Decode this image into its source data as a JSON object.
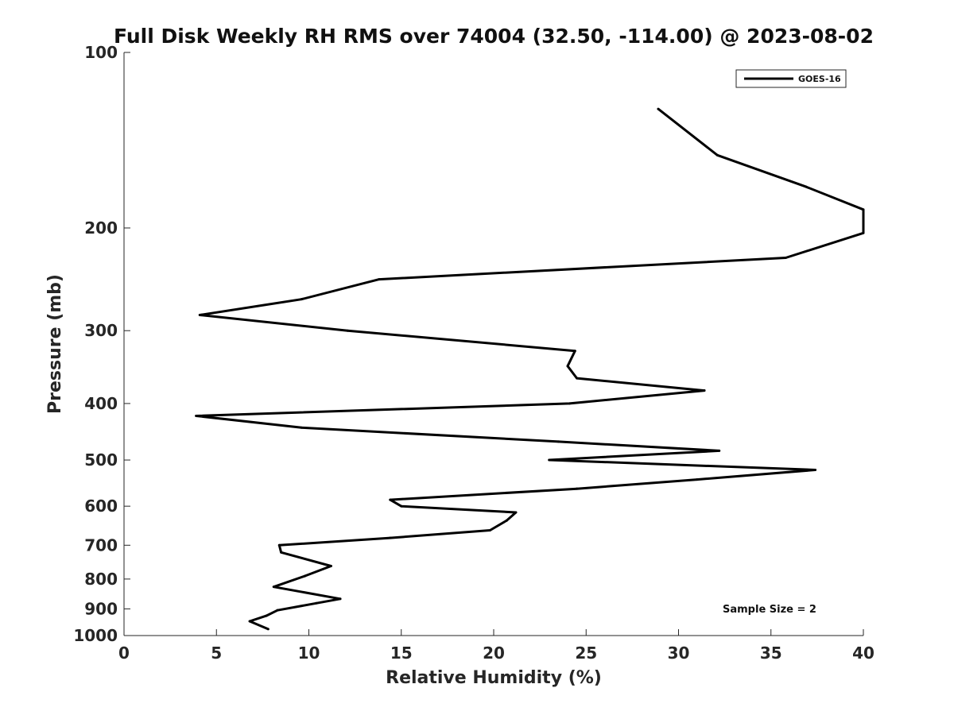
{
  "chart_data": {
    "type": "line",
    "title": "Full Disk Weekly RH RMS over 74004 (32.50, -114.00) @ 2023-08-02",
    "xlabel": "Relative Humidity (%)",
    "ylabel": "Pressure (mb)",
    "xlim": [
      0,
      40
    ],
    "ylim": [
      100,
      1000
    ],
    "y_scale": "log",
    "y_reversed": true,
    "grid": false,
    "x_ticks": [
      "0",
      "5",
      "10",
      "15",
      "20",
      "25",
      "30",
      "35",
      "40"
    ],
    "y_ticks": [
      "100",
      "200",
      "300",
      "400",
      "500",
      "600",
      "700",
      "800",
      "900",
      "1000"
    ],
    "legend_position": "top-right",
    "annotation": "Sample Size = 2",
    "series": [
      {
        "name": "GOES-16",
        "color": "#000000",
        "points": [
          {
            "x": 28.9,
            "p": 125
          },
          {
            "x": 32.1,
            "p": 150
          },
          {
            "x": 36.9,
            "p": 170
          },
          {
            "x": 40.0,
            "p": 186
          },
          {
            "x": 40.0,
            "p": 204
          },
          {
            "x": 35.8,
            "p": 225
          },
          {
            "x": 13.8,
            "p": 245
          },
          {
            "x": 9.6,
            "p": 265
          },
          {
            "x": 4.1,
            "p": 282
          },
          {
            "x": 12.1,
            "p": 300
          },
          {
            "x": 24.4,
            "p": 325
          },
          {
            "x": 24.0,
            "p": 345
          },
          {
            "x": 24.5,
            "p": 362
          },
          {
            "x": 31.4,
            "p": 380
          },
          {
            "x": 24.1,
            "p": 400
          },
          {
            "x": 3.9,
            "p": 420
          },
          {
            "x": 9.6,
            "p": 440
          },
          {
            "x": 23.5,
            "p": 465
          },
          {
            "x": 32.2,
            "p": 482
          },
          {
            "x": 23.0,
            "p": 500
          },
          {
            "x": 37.4,
            "p": 520
          },
          {
            "x": 31.0,
            "p": 540
          },
          {
            "x": 24.5,
            "p": 560
          },
          {
            "x": 14.4,
            "p": 585
          },
          {
            "x": 15.0,
            "p": 600
          },
          {
            "x": 21.2,
            "p": 615
          },
          {
            "x": 20.7,
            "p": 635
          },
          {
            "x": 19.8,
            "p": 660
          },
          {
            "x": 14.4,
            "p": 680
          },
          {
            "x": 8.4,
            "p": 700
          },
          {
            "x": 8.5,
            "p": 720
          },
          {
            "x": 11.2,
            "p": 760
          },
          {
            "x": 9.8,
            "p": 790
          },
          {
            "x": 8.1,
            "p": 825
          },
          {
            "x": 11.7,
            "p": 865
          },
          {
            "x": 10.4,
            "p": 880
          },
          {
            "x": 8.3,
            "p": 905
          },
          {
            "x": 7.7,
            "p": 925
          },
          {
            "x": 6.8,
            "p": 945
          },
          {
            "x": 7.8,
            "p": 975
          }
        ]
      }
    ]
  }
}
